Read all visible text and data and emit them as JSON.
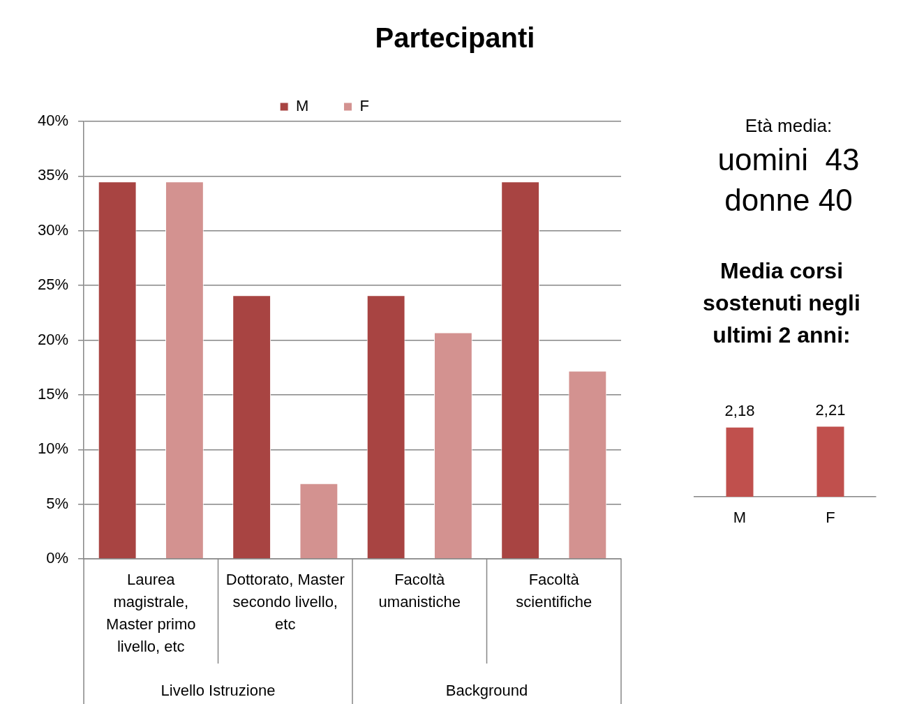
{
  "chart_data": [
    {
      "type": "bar",
      "title": "Partecipanti",
      "categories": [
        "Laurea magistrale, Master primo livello, etc",
        "Dottorato, Master secondo livello, etc",
        "Facoltà umanistiche",
        "Facoltà scientifiche"
      ],
      "series": [
        {
          "name": "M",
          "color": "#a84442",
          "values": [
            34.5,
            24.1,
            24.1,
            34.5
          ]
        },
        {
          "name": "F",
          "color": "#d39290",
          "values": [
            34.5,
            6.9,
            20.7,
            17.2
          ]
        }
      ],
      "ylim": [
        0,
        40
      ],
      "yticks": [
        {
          "value": 0,
          "label": "0%"
        },
        {
          "value": 5,
          "label": "5%"
        },
        {
          "value": 10,
          "label": "10%"
        },
        {
          "value": 15,
          "label": "15%"
        },
        {
          "value": 20,
          "label": "20%"
        },
        {
          "value": 25,
          "label": "25%"
        },
        {
          "value": 30,
          "label": "30%"
        },
        {
          "value": 35,
          "label": "35%"
        },
        {
          "value": 40,
          "label": "40%"
        }
      ],
      "grid": "y",
      "legend": "top",
      "annotations": [
        "Livello Istruzione",
        "Background"
      ]
    },
    {
      "type": "other",
      "annotations": [
        "Età media:",
        "uomini  43",
        "donne 40"
      ]
    },
    {
      "type": "bar",
      "title": "Media corsi sostenuti negli ultimi 2 anni:",
      "categories": [
        "M",
        "F"
      ],
      "values": [
        2.18,
        2.21
      ],
      "value_labels": [
        "2,18",
        "2,21"
      ],
      "color": "#c0504d",
      "tick_labels": "x"
    }
  ]
}
